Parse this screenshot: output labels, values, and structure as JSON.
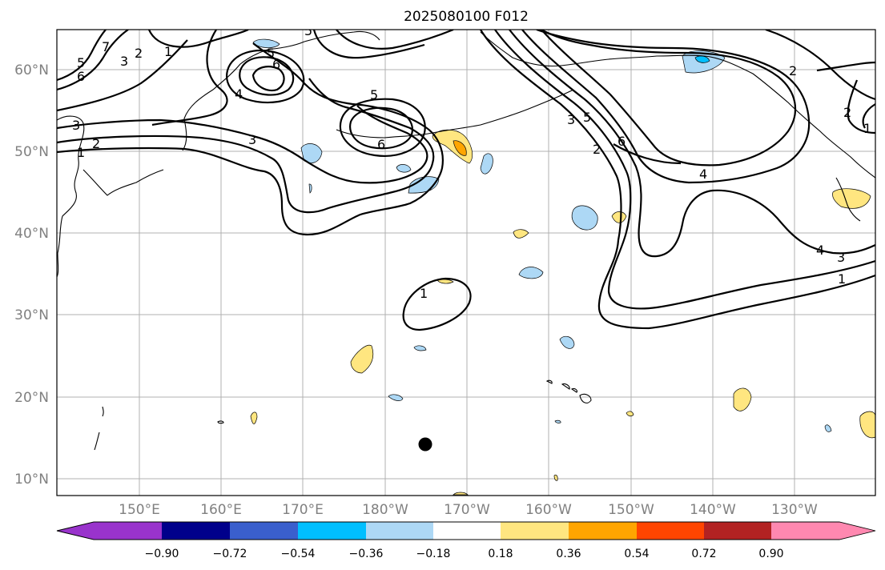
{
  "title": "2025080100 F012",
  "lat_labels": [
    "60°N",
    "50°N",
    "40°N",
    "30°N",
    "20°N",
    "10°N"
  ],
  "lon_labels": [
    "150°E",
    "160°E",
    "170°E",
    "180°W",
    "170°W",
    "160°W",
    "150°W",
    "140°W",
    "130°W"
  ],
  "contour_labels": [
    "5",
    "6",
    "7",
    "3",
    "2",
    "1",
    "5",
    "5",
    "6",
    "4",
    "3",
    "3",
    "1",
    "2",
    "5",
    "6",
    "1",
    "2",
    "3",
    "5",
    "6",
    "4",
    "2",
    "2",
    "1",
    "4",
    "3",
    "1"
  ],
  "colorbar": {
    "ticks": [
      "−0.90",
      "−0.72",
      "−0.54",
      "−0.36",
      "−0.18",
      "0.18",
      "0.36",
      "0.54",
      "0.72",
      "0.90"
    ],
    "colors": [
      "#9933cc",
      "#00008b",
      "#3a5fcd",
      "#00bfff",
      "#add8f5",
      "#ffffff",
      "#ffe680",
      "#ffa500",
      "#ff4500",
      "#b22222",
      "#ff88b0"
    ]
  },
  "map": {
    "lat_range": [
      "8°N",
      "65°N"
    ],
    "lon_range": [
      "140°E",
      "120°W"
    ],
    "grid": true,
    "marker": "black-dot"
  }
}
